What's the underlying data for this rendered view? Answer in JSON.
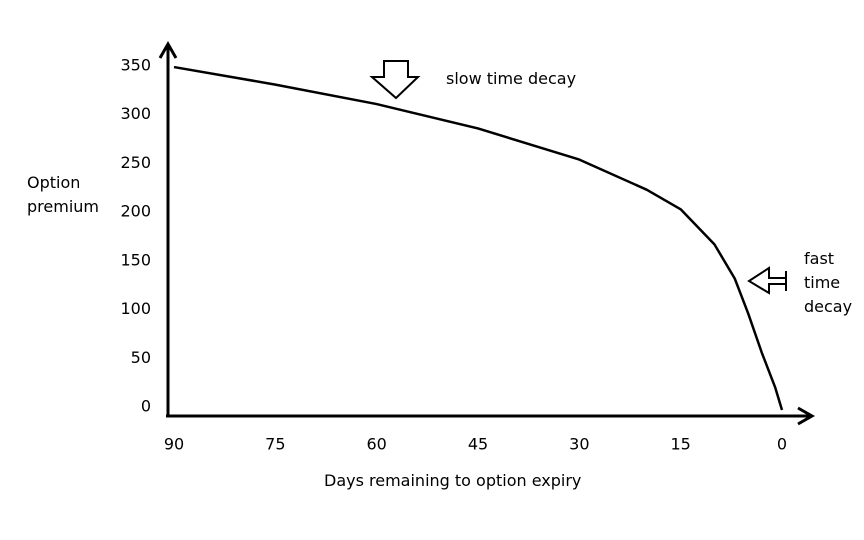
{
  "chart_data": {
    "type": "line",
    "x_label": "Days remaining to option expiry",
    "y_label": "Option premium",
    "x": [
      90,
      75,
      60,
      45,
      30,
      20,
      15,
      10,
      7,
      5,
      3,
      1,
      0
    ],
    "values": [
      352,
      334,
      314,
      289,
      257,
      226,
      206,
      170,
      135,
      99,
      59,
      23,
      0
    ],
    "color": "#000000",
    "xlim": [
      90,
      0
    ],
    "xticks": [
      90,
      75,
      60,
      45,
      30,
      15,
      0
    ],
    "ylim": [
      0,
      350
    ],
    "yticks": [
      0,
      50,
      100,
      150,
      200,
      250,
      300,
      350
    ],
    "grid": false,
    "annotations": [
      "slow time decay",
      "fast time decay"
    ]
  }
}
